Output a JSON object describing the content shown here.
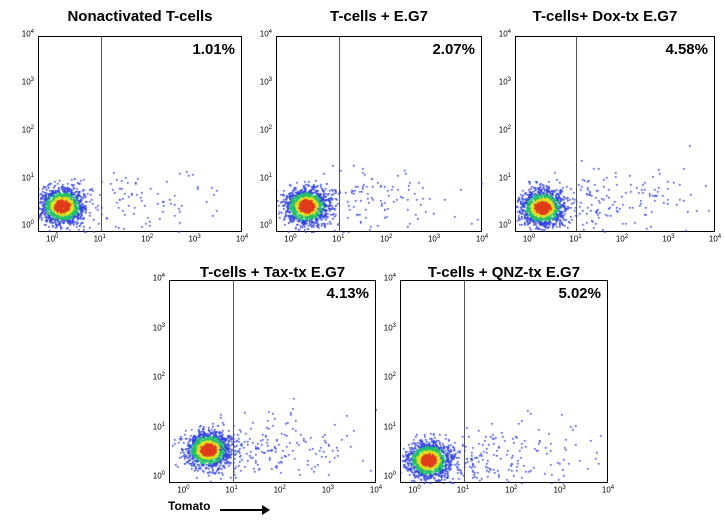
{
  "chart_data": [
    {
      "type": "scatter",
      "title": "Nonactivated T-cells",
      "gate_percent": "1.01%",
      "gate_x": 10,
      "xscale": "log",
      "yscale": "log",
      "xlim": [
        0.5,
        10000
      ],
      "ylim": [
        0.8,
        10000
      ],
      "xticks": [
        "10^0",
        "10^1",
        "10^2",
        "10^3",
        "10^4"
      ],
      "yticks": [
        "10^0",
        "10^1",
        "10^2",
        "10^3",
        "10^4"
      ],
      "cluster_center": [
        1.5,
        3
      ],
      "grid": false
    },
    {
      "type": "scatter",
      "title": "T-cells + E.G7",
      "gate_percent": "2.07%",
      "gate_x": 10,
      "xscale": "log",
      "yscale": "log",
      "xlim": [
        0.5,
        10000
      ],
      "ylim": [
        0.8,
        10000
      ],
      "xticks": [
        "10^0",
        "10^1",
        "10^2",
        "10^3",
        "10^4"
      ],
      "yticks": [
        "10^0",
        "10^1",
        "10^2",
        "10^3",
        "10^4"
      ],
      "cluster_center": [
        2,
        3
      ],
      "grid": false
    },
    {
      "type": "scatter",
      "title": "T-cells+ Dox-tx E.G7",
      "gate_percent": "4.58%",
      "gate_x": 10,
      "xscale": "log",
      "yscale": "log",
      "xlim": [
        0.5,
        10000
      ],
      "ylim": [
        0.8,
        10000
      ],
      "xticks": [
        "10^0",
        "10^1",
        "10^2",
        "10^3",
        "10^4"
      ],
      "yticks": [
        "10^0",
        "10^1",
        "10^2",
        "10^3",
        "10^4"
      ],
      "cluster_center": [
        1.8,
        2.8
      ],
      "grid": false
    },
    {
      "type": "scatter",
      "title": "T-cells + Tax-tx E.G7",
      "gate_percent": "4.13%",
      "gate_x": 10,
      "xscale": "log",
      "yscale": "log",
      "xlim": [
        0.5,
        10000
      ],
      "ylim": [
        0.8,
        10000
      ],
      "xticks": [
        "10^0",
        "10^1",
        "10^2",
        "10^3",
        "10^4"
      ],
      "yticks": [
        "10^0",
        "10^1",
        "10^2",
        "10^3",
        "10^4"
      ],
      "cluster_center": [
        3,
        4
      ],
      "grid": false
    },
    {
      "type": "scatter",
      "title": "T-cells + QNZ-tx E.G7",
      "gate_percent": "5.02%",
      "gate_x": 10,
      "xscale": "log",
      "yscale": "log",
      "xlim": [
        0.5,
        10000
      ],
      "ylim": [
        0.8,
        10000
      ],
      "xticks": [
        "10^0",
        "10^1",
        "10^2",
        "10^3",
        "10^4"
      ],
      "yticks": [
        "10^0",
        "10^1",
        "10^2",
        "10^3",
        "10^4"
      ],
      "cluster_center": [
        1.8,
        2.5
      ],
      "grid": false
    }
  ],
  "xlabel": "Tomato",
  "colors": {
    "low": "#2f3fe0",
    "mid": "#1fbf6a",
    "high": "#e0e020",
    "peak": "#e03a1a",
    "gate_line": "#555555"
  }
}
